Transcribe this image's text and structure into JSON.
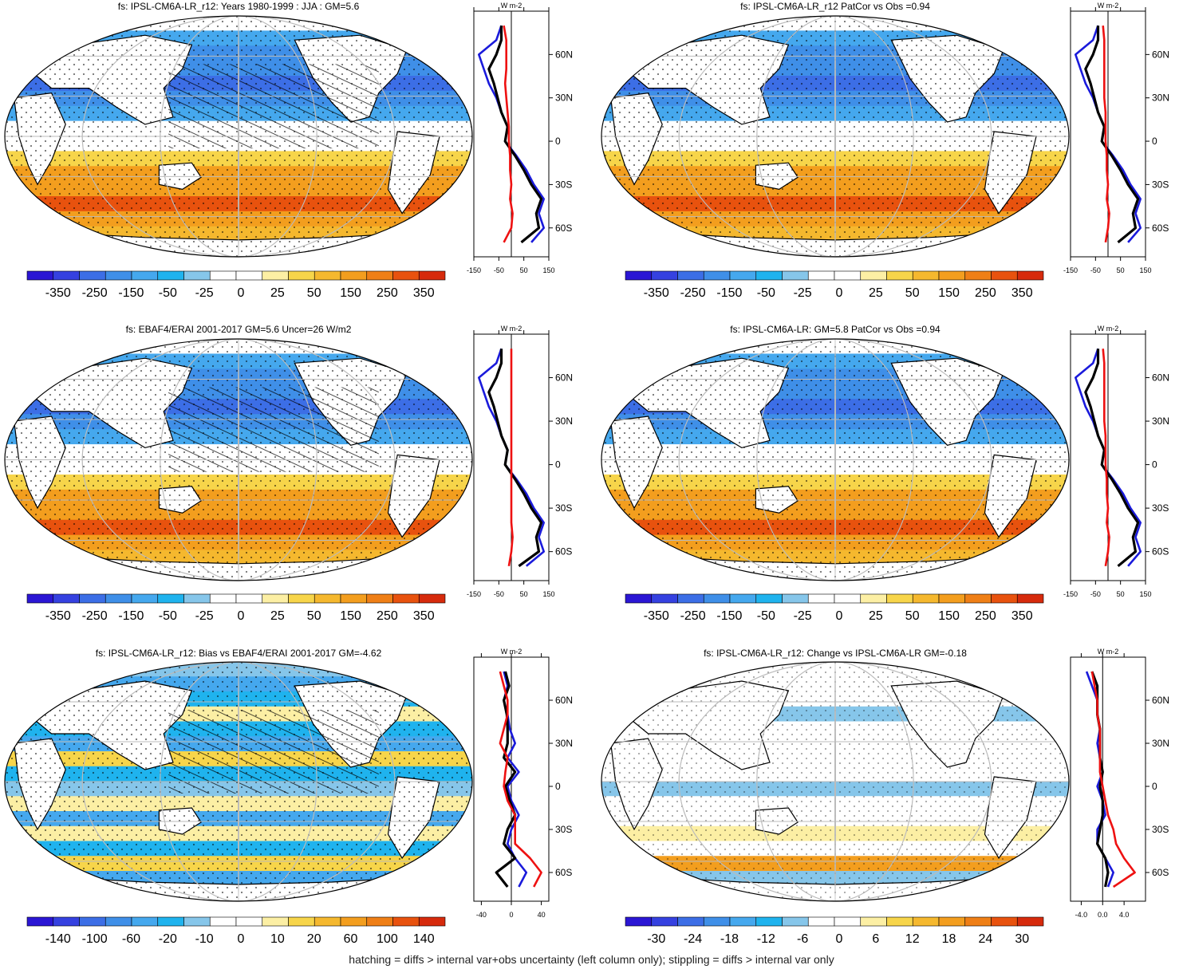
{
  "footnote": "hatching = diffs > internal var+obs uncertainty (left column only); stippling = diffs > internal var only",
  "colors": {
    "scale": [
      "#2b16d4",
      "#3541e0",
      "#3c6ee6",
      "#3f8fe8",
      "#45a8ee",
      "#1fb3ee",
      "#86c6ea",
      "#ffffff",
      "#ffffff",
      "#fcefa4",
      "#f7d54a",
      "#f5b82e",
      "#f39e1e",
      "#ef7f16",
      "#e8520e",
      "#d62a0c"
    ],
    "obs_line": "#1a1adb",
    "model_line": "#000000",
    "diff_line": "#ee1111",
    "grid": "#bbbbbb",
    "land": "#ffffff"
  },
  "chart_data": [
    {
      "id": "p1",
      "type": "heatmap",
      "title": "fs: IPSL-CM6A-LR_r12: Years 1980-1999 : JJA : GM=5.6",
      "colorbar_labels": [
        "-350",
        "-250",
        "-150",
        "-50",
        "-25",
        "0",
        "25",
        "50",
        "150",
        "250",
        "350"
      ],
      "zonal": {
        "xticks": [
          "-150",
          "-50",
          "50",
          "150"
        ],
        "xlim": [
          -150,
          150
        ],
        "yticks": [
          "60N",
          "30N",
          "0",
          "30S",
          "60S"
        ],
        "unit": "W m-2",
        "lat": [
          80,
          70,
          60,
          50,
          40,
          30,
          20,
          10,
          0,
          -10,
          -20,
          -30,
          -40,
          -50,
          -60,
          -70
        ],
        "series": [
          {
            "name": "obs",
            "values": [
              -40,
              -60,
              -130,
              -110,
              -90,
              -60,
              -40,
              -15,
              -25,
              20,
              60,
              90,
              130,
              110,
              130,
              80
            ]
          },
          {
            "name": "model",
            "values": [
              -40,
              -40,
              -60,
              -90,
              -70,
              -55,
              -40,
              -15,
              -25,
              15,
              50,
              80,
              120,
              100,
              110,
              40
            ]
          },
          {
            "name": "diff",
            "values": [
              -30,
              -20,
              -20,
              -20,
              -25,
              -20,
              -15,
              -10,
              -10,
              -5,
              -5,
              0,
              -5,
              5,
              0,
              -30
            ]
          }
        ]
      }
    },
    {
      "id": "p2",
      "type": "heatmap",
      "title": "fs: IPSL-CM6A-LR_r12 PatCor vs Obs =0.94",
      "colorbar_labels": [
        "-350",
        "-250",
        "-150",
        "-50",
        "-25",
        "0",
        "25",
        "50",
        "150",
        "250",
        "350"
      ],
      "zonal": {
        "xticks": [
          "-150",
          "-50",
          "50",
          "150"
        ],
        "xlim": [
          -150,
          150
        ],
        "yticks": [
          "60N",
          "30N",
          "0",
          "30S",
          "60S"
        ],
        "unit": "W m-2",
        "lat": [
          80,
          70,
          60,
          50,
          40,
          30,
          20,
          10,
          0,
          -10,
          -20,
          -30,
          -40,
          -50,
          -60,
          -70
        ],
        "series": [
          {
            "name": "obs",
            "values": [
              -40,
              -60,
              -130,
              -110,
              -90,
              -60,
              -40,
              -15,
              -25,
              20,
              60,
              90,
              130,
              110,
              130,
              80
            ]
          },
          {
            "name": "model",
            "values": [
              -40,
              -40,
              -60,
              -90,
              -70,
              -55,
              -40,
              -15,
              -25,
              15,
              50,
              80,
              120,
              100,
              110,
              40
            ]
          },
          {
            "name": "diff",
            "values": [
              -20,
              -15,
              -15,
              -15,
              -15,
              -15,
              -10,
              -10,
              -10,
              -5,
              -5,
              0,
              -5,
              5,
              0,
              -10
            ]
          }
        ]
      }
    },
    {
      "id": "p3",
      "type": "heatmap",
      "title": "fs: EBAF4/ERAI 2001-2017 GM=5.6 Uncer=26 W/m2",
      "colorbar_labels": [
        "-350",
        "-250",
        "-150",
        "-50",
        "-25",
        "0",
        "25",
        "50",
        "150",
        "250",
        "350"
      ],
      "zonal": {
        "xticks": [
          "-150",
          "-50",
          "50",
          "150"
        ],
        "xlim": [
          -150,
          150
        ],
        "yticks": [
          "60N",
          "30N",
          "0",
          "30S",
          "60S"
        ],
        "unit": "W m-2",
        "lat": [
          80,
          70,
          60,
          50,
          40,
          30,
          20,
          10,
          0,
          -10,
          -20,
          -30,
          -40,
          -50,
          -60,
          -70
        ],
        "series": [
          {
            "name": "obs",
            "values": [
              -40,
              -60,
              -130,
              -110,
              -90,
              -60,
              -40,
              -15,
              -25,
              20,
              60,
              90,
              130,
              110,
              130,
              60
            ]
          },
          {
            "name": "model",
            "values": [
              -40,
              -40,
              -60,
              -90,
              -70,
              -55,
              -40,
              -15,
              -25,
              15,
              50,
              80,
              120,
              100,
              110,
              30
            ]
          },
          {
            "name": "diff",
            "values": [
              0,
              0,
              0,
              0,
              0,
              0,
              0,
              0,
              0,
              0,
              0,
              0,
              0,
              5,
              0,
              -10
            ]
          }
        ]
      }
    },
    {
      "id": "p4",
      "type": "heatmap",
      "title": "fs: IPSL-CM6A-LR: GM=5.8 PatCor vs Obs =0.94",
      "colorbar_labels": [
        "-350",
        "-250",
        "-150",
        "-50",
        "-25",
        "0",
        "25",
        "50",
        "150",
        "250",
        "350"
      ],
      "zonal": {
        "xticks": [
          "-150",
          "-50",
          "50",
          "150"
        ],
        "xlim": [
          -150,
          150
        ],
        "yticks": [
          "60N",
          "30N",
          "0",
          "30S",
          "60S"
        ],
        "unit": "W m-2",
        "lat": [
          80,
          70,
          60,
          50,
          40,
          30,
          20,
          10,
          0,
          -10,
          -20,
          -30,
          -40,
          -50,
          -60,
          -70
        ],
        "series": [
          {
            "name": "obs",
            "values": [
              -40,
              -60,
              -130,
              -110,
              -90,
              -60,
              -40,
              -15,
              -25,
              20,
              60,
              90,
              130,
              110,
              130,
              80
            ]
          },
          {
            "name": "model",
            "values": [
              -40,
              -40,
              -60,
              -90,
              -70,
              -55,
              -40,
              -15,
              -25,
              15,
              50,
              80,
              120,
              100,
              110,
              40
            ]
          },
          {
            "name": "diff",
            "values": [
              -20,
              -15,
              -15,
              -15,
              -15,
              -15,
              -10,
              -10,
              -10,
              -5,
              -5,
              0,
              -5,
              5,
              0,
              -10
            ]
          }
        ]
      }
    },
    {
      "id": "p5",
      "type": "heatmap",
      "title": "fs: IPSL-CM6A-LR_r12: Bias vs EBAF4/ERAI 2001-2017 GM=-4.62",
      "colorbar_labels": [
        "-140",
        "-100",
        "-60",
        "-20",
        "-10",
        "0",
        "10",
        "20",
        "60",
        "100",
        "140"
      ],
      "zonal": {
        "xticks": [
          "-40",
          "0",
          "40"
        ],
        "xlim": [
          -50,
          50
        ],
        "yticks": [
          "60N",
          "30N",
          "0",
          "30S",
          "60S"
        ],
        "unit": "W m-2",
        "lat": [
          80,
          70,
          60,
          50,
          40,
          30,
          20,
          10,
          0,
          -10,
          -20,
          -30,
          -40,
          -50,
          -60,
          -70
        ],
        "series": [
          {
            "name": "obs",
            "values": [
              -10,
              -5,
              -10,
              -5,
              -2,
              5,
              -5,
              10,
              -5,
              0,
              10,
              0,
              -5,
              5,
              20,
              10
            ]
          },
          {
            "name": "model",
            "values": [
              -8,
              -3,
              -10,
              -6,
              -5,
              -5,
              -10,
              5,
              -8,
              -2,
              5,
              -5,
              -10,
              5,
              -20,
              -5
            ]
          },
          {
            "name": "diff",
            "values": [
              -15,
              -10,
              -5,
              -5,
              -10,
              -15,
              -5,
              -8,
              -10,
              -5,
              5,
              5,
              5,
              25,
              40,
              30
            ]
          }
        ]
      }
    },
    {
      "id": "p6",
      "type": "heatmap",
      "title": "fs: IPSL-CM6A-LR_r12: Change vs IPSL-CM6A-LR GM=-0.18",
      "colorbar_labels": [
        "-30",
        "-24",
        "-18",
        "-12",
        "-6",
        "0",
        "6",
        "12",
        "18",
        "24",
        "30"
      ],
      "zonal": {
        "xticks": [
          "-4.0",
          "0.0",
          "4.0"
        ],
        "xlim": [
          -6,
          8
        ],
        "yticks": [
          "60N",
          "30N",
          "0",
          "30S",
          "60S"
        ],
        "unit": "W m-2",
        "lat": [
          80,
          70,
          60,
          50,
          40,
          30,
          20,
          10,
          0,
          -10,
          -20,
          -30,
          -40,
          -50,
          -60,
          -70
        ],
        "series": [
          {
            "name": "obs",
            "values": [
              -3,
              -2,
              -1,
              -1,
              -0.5,
              -1,
              -0.5,
              0,
              -1,
              0,
              0.5,
              -1,
              -1,
              0.5,
              2,
              1
            ]
          },
          {
            "name": "model",
            "values": [
              -2,
              -1,
              -1,
              -1,
              -0.5,
              -0.5,
              -0.5,
              0,
              -0.5,
              0,
              0,
              -0.5,
              -1,
              0.5,
              1,
              0.5
            ]
          },
          {
            "name": "diff",
            "values": [
              -2,
              -1.5,
              -1,
              -1,
              -0.5,
              -0.5,
              -0.5,
              -0.5,
              0,
              0.5,
              1,
              2,
              2.5,
              4,
              6,
              2
            ]
          }
        ]
      }
    }
  ]
}
